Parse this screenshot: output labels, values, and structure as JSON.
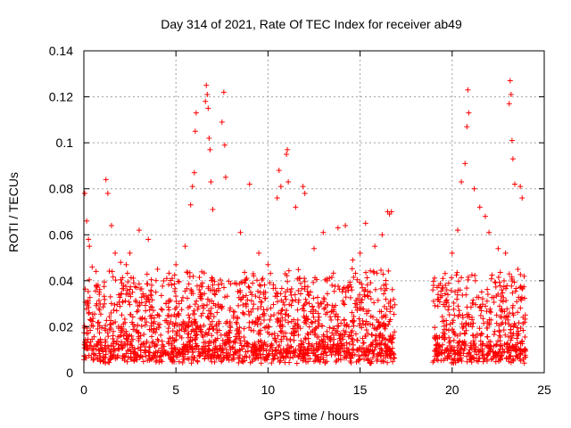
{
  "chart_data": {
    "type": "scatter",
    "title": "Day 314 of 2021, Rate Of TEC Index for receiver ab49",
    "xlabel": "GPS time / hours",
    "ylabel": "ROTI / TECUs",
    "xlim": [
      0,
      25
    ],
    "ylim": [
      0,
      0.14
    ],
    "xticks": [
      0,
      5,
      10,
      15,
      20,
      25
    ],
    "yticks": [
      0,
      0.02,
      0.04,
      0.06,
      0.08,
      0.1,
      0.12,
      0.14
    ],
    "grid": true,
    "marker": "plus",
    "color": "#ff0000",
    "data_gap_hours": [
      16.9,
      18.9
    ],
    "series": [
      {
        "values": [
          [
            0.05,
            0.078
          ],
          [
            0.15,
            0.066
          ],
          [
            0.25,
            0.058
          ],
          [
            0.3,
            0.055
          ],
          [
            0.45,
            0.046
          ],
          [
            1.2,
            0.084
          ],
          [
            1.3,
            0.078
          ],
          [
            1.5,
            0.064
          ],
          [
            1.7,
            0.052
          ],
          [
            2.0,
            0.048
          ],
          [
            2.3,
            0.047
          ],
          [
            2.5,
            0.052
          ],
          [
            3.0,
            0.062
          ],
          [
            3.5,
            0.058
          ],
          [
            4.0,
            0.045
          ],
          [
            4.5,
            0.041
          ],
          [
            5.0,
            0.047
          ],
          [
            5.5,
            0.055
          ],
          [
            5.8,
            0.073
          ],
          [
            5.9,
            0.081
          ],
          [
            6.0,
            0.087
          ],
          [
            6.05,
            0.105
          ],
          [
            6.1,
            0.113
          ],
          [
            6.6,
            0.118
          ],
          [
            6.65,
            0.125
          ],
          [
            6.7,
            0.121
          ],
          [
            6.75,
            0.115
          ],
          [
            6.8,
            0.102
          ],
          [
            6.85,
            0.097
          ],
          [
            6.9,
            0.083
          ],
          [
            7.0,
            0.071
          ],
          [
            7.5,
            0.109
          ],
          [
            7.6,
            0.122
          ],
          [
            7.65,
            0.099
          ],
          [
            7.7,
            0.085
          ],
          [
            8.5,
            0.061
          ],
          [
            9.0,
            0.082
          ],
          [
            9.5,
            0.052
          ],
          [
            10.0,
            0.047
          ],
          [
            10.5,
            0.076
          ],
          [
            10.6,
            0.088
          ],
          [
            10.7,
            0.081
          ],
          [
            11.0,
            0.095
          ],
          [
            11.05,
            0.097
          ],
          [
            11.1,
            0.083
          ],
          [
            11.5,
            0.072
          ],
          [
            11.9,
            0.081
          ],
          [
            12.0,
            0.078
          ],
          [
            12.5,
            0.054
          ],
          [
            13.0,
            0.061
          ],
          [
            13.8,
            0.063
          ],
          [
            14.2,
            0.064
          ],
          [
            14.6,
            0.049
          ],
          [
            15.0,
            0.052
          ],
          [
            15.3,
            0.065
          ],
          [
            15.8,
            0.055
          ],
          [
            16.2,
            0.06
          ],
          [
            16.5,
            0.07
          ],
          [
            16.6,
            0.069
          ],
          [
            16.7,
            0.07
          ],
          [
            18.95,
            0.036
          ],
          [
            19.2,
            0.032
          ],
          [
            19.5,
            0.041
          ],
          [
            20.0,
            0.052
          ],
          [
            20.3,
            0.062
          ],
          [
            20.5,
            0.083
          ],
          [
            20.7,
            0.091
          ],
          [
            20.8,
            0.107
          ],
          [
            20.85,
            0.123
          ],
          [
            20.9,
            0.113
          ],
          [
            21.2,
            0.08
          ],
          [
            21.5,
            0.072
          ],
          [
            21.8,
            0.068
          ],
          [
            22.0,
            0.061
          ],
          [
            22.5,
            0.054
          ],
          [
            22.9,
            0.052
          ],
          [
            23.1,
            0.117
          ],
          [
            23.15,
            0.127
          ],
          [
            23.2,
            0.121
          ],
          [
            23.25,
            0.101
          ],
          [
            23.3,
            0.093
          ],
          [
            23.4,
            0.082
          ],
          [
            23.7,
            0.081
          ],
          [
            23.8,
            0.076
          ]
        ]
      }
    ]
  }
}
